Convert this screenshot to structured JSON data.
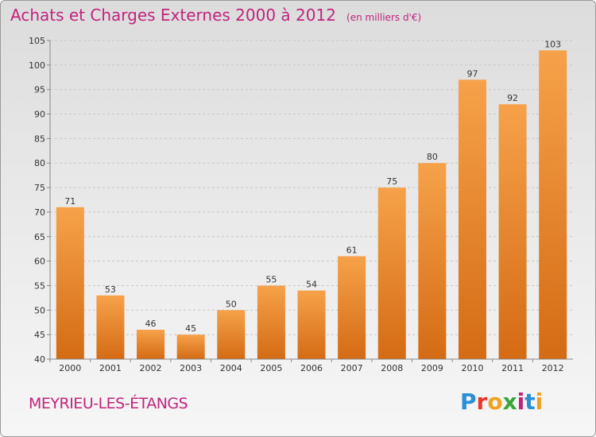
{
  "header": {
    "title": "Achats et Charges Externes 2000 à 2012",
    "subtitle": "(en milliers d'€)"
  },
  "footer": {
    "commune": "MEYRIEU-LES-ÉTANGS",
    "logo_letters": [
      "P",
      "r",
      "o",
      "x",
      "i",
      "t",
      "i"
    ],
    "logo_colors": [
      "#2b8fd6",
      "#e7382a",
      "#f0a21e",
      "#3aa63a",
      "#c0247d",
      "#2b8fd6",
      "#f0a21e"
    ]
  },
  "colors": {
    "bar_top": "#f6a24a",
    "bar_bottom": "#d46b14",
    "title": "#c0247d"
  },
  "chart_data": {
    "type": "bar",
    "categories": [
      "2000",
      "2001",
      "2002",
      "2003",
      "2004",
      "2005",
      "2006",
      "2007",
      "2008",
      "2009",
      "2010",
      "2011",
      "2012"
    ],
    "values": [
      71,
      53,
      46,
      45,
      50,
      55,
      54,
      61,
      75,
      80,
      97,
      92,
      103
    ],
    "data_labels": [
      "71",
      "53",
      "46",
      "45",
      "50",
      "55",
      "54",
      "61",
      "75",
      "80",
      "97",
      "92",
      "103"
    ],
    "ylim": [
      40,
      105
    ],
    "yticks": [
      "40",
      "45",
      "50",
      "55",
      "60",
      "65",
      "70",
      "75",
      "80",
      "85",
      "90",
      "95",
      "100",
      "105"
    ],
    "grid": "dashed-horizontal",
    "title": "Achats et Charges Externes 2000 à 2012",
    "xlabel": "",
    "ylabel": ""
  }
}
